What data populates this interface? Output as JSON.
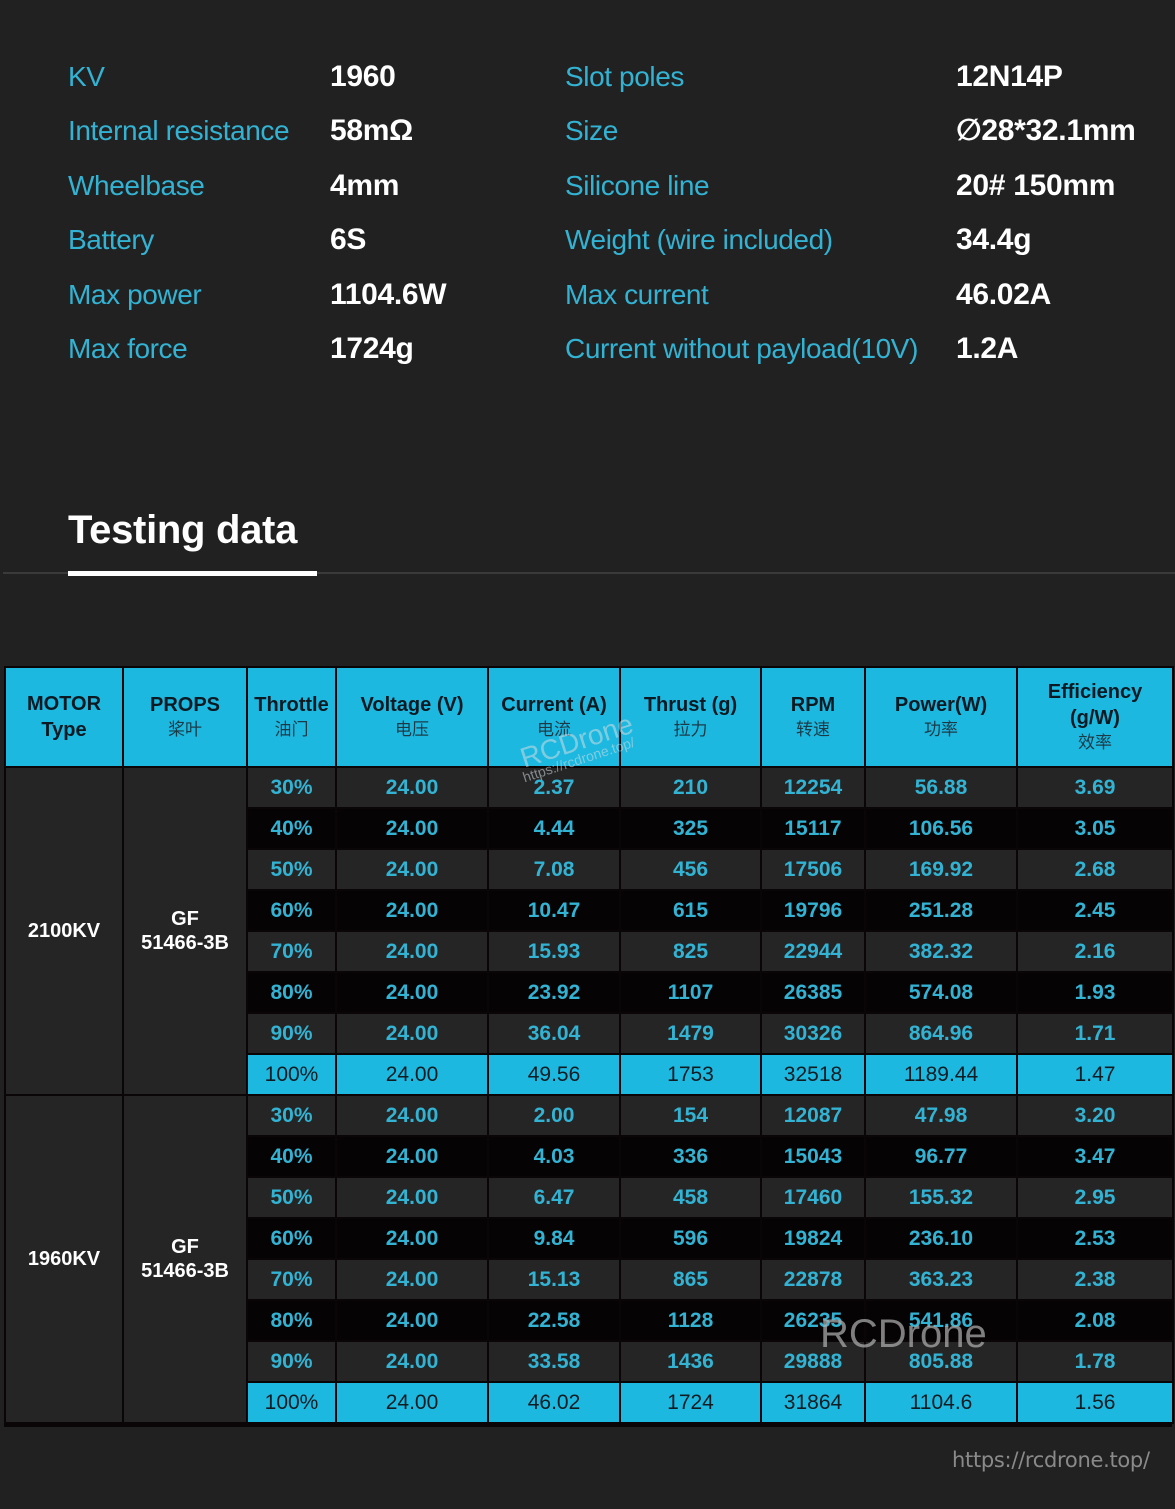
{
  "specs": {
    "left": [
      {
        "label": "KV",
        "value": "1960"
      },
      {
        "label": "Internal resistance",
        "value": "58mΩ"
      },
      {
        "label": "Wheelbase",
        "value": "4mm"
      },
      {
        "label": "Battery",
        "value": "6S"
      },
      {
        "label": "Max power",
        "value": "1104.6W"
      },
      {
        "label": "Max force",
        "value": "1724g"
      }
    ],
    "right": [
      {
        "label": "Slot poles",
        "value": "12N14P"
      },
      {
        "label": "Size",
        "value": "∅28*32.1mm"
      },
      {
        "label": "Silicone line",
        "value": "20# 150mm"
      },
      {
        "label": "Weight (wire included)",
        "value": "34.4g"
      },
      {
        "label": "Max current",
        "value": "46.02A"
      },
      {
        "label": "Current without payload(10V)",
        "value": "1.2A"
      }
    ]
  },
  "section": {
    "title": "Testing data"
  },
  "table": {
    "headers": [
      {
        "en": "MOTOR Type",
        "en1": "MOTOR",
        "en2": "Type",
        "cn": ""
      },
      {
        "en": "PROPS",
        "cn": "桨叶"
      },
      {
        "en": "Throttle",
        "cn": "油门"
      },
      {
        "en": "Voltage (V)",
        "cn": "电压"
      },
      {
        "en": "Current (A)",
        "cn": "电流"
      },
      {
        "en": "Thrust (g)",
        "cn": "拉力"
      },
      {
        "en": "RPM",
        "cn": "转速"
      },
      {
        "en": "Power(W)",
        "cn": "功率"
      },
      {
        "en": "Efficiency (g/W)",
        "en1": "Efficiency",
        "en2": "(g/W)",
        "cn": "效率"
      }
    ],
    "groups": [
      {
        "motor": "2100KV",
        "props_line1": "GF",
        "props_line2": "51466-3B",
        "rows": [
          {
            "throttle": "30%",
            "voltage": "24.00",
            "current": "2.37",
            "thrust": "210",
            "rpm": "12254",
            "power": "56.88",
            "efficiency": "3.69"
          },
          {
            "throttle": "40%",
            "voltage": "24.00",
            "current": "4.44",
            "thrust": "325",
            "rpm": "15117",
            "power": "106.56",
            "efficiency": "3.05"
          },
          {
            "throttle": "50%",
            "voltage": "24.00",
            "current": "7.08",
            "thrust": "456",
            "rpm": "17506",
            "power": "169.92",
            "efficiency": "2.68"
          },
          {
            "throttle": "60%",
            "voltage": "24.00",
            "current": "10.47",
            "thrust": "615",
            "rpm": "19796",
            "power": "251.28",
            "efficiency": "2.45"
          },
          {
            "throttle": "70%",
            "voltage": "24.00",
            "current": "15.93",
            "thrust": "825",
            "rpm": "22944",
            "power": "382.32",
            "efficiency": "2.16"
          },
          {
            "throttle": "80%",
            "voltage": "24.00",
            "current": "23.92",
            "thrust": "1107",
            "rpm": "26385",
            "power": "574.08",
            "efficiency": "1.93"
          },
          {
            "throttle": "90%",
            "voltage": "24.00",
            "current": "36.04",
            "thrust": "1479",
            "rpm": "30326",
            "power": "864.96",
            "efficiency": "1.71"
          },
          {
            "throttle": "100%",
            "voltage": "24.00",
            "current": "49.56",
            "thrust": "1753",
            "rpm": "32518",
            "power": "1189.44",
            "efficiency": "1.47"
          }
        ]
      },
      {
        "motor": "1960KV",
        "props_line1": "GF",
        "props_line2": "51466-3B",
        "rows": [
          {
            "throttle": "30%",
            "voltage": "24.00",
            "current": "2.00",
            "thrust": "154",
            "rpm": "12087",
            "power": "47.98",
            "efficiency": "3.20"
          },
          {
            "throttle": "40%",
            "voltage": "24.00",
            "current": "4.03",
            "thrust": "336",
            "rpm": "15043",
            "power": "96.77",
            "efficiency": "3.47"
          },
          {
            "throttle": "50%",
            "voltage": "24.00",
            "current": "6.47",
            "thrust": "458",
            "rpm": "17460",
            "power": "155.32",
            "efficiency": "2.95"
          },
          {
            "throttle": "60%",
            "voltage": "24.00",
            "current": "9.84",
            "thrust": "596",
            "rpm": "19824",
            "power": "236.10",
            "efficiency": "2.53"
          },
          {
            "throttle": "70%",
            "voltage": "24.00",
            "current": "15.13",
            "thrust": "865",
            "rpm": "22878",
            "power": "363.23",
            "efficiency": "2.38"
          },
          {
            "throttle": "80%",
            "voltage": "24.00",
            "current": "22.58",
            "thrust": "1128",
            "rpm": "26235",
            "power": "541.86",
            "efficiency": "2.08"
          },
          {
            "throttle": "90%",
            "voltage": "24.00",
            "current": "33.58",
            "thrust": "1436",
            "rpm": "29888",
            "power": "805.88",
            "efficiency": "1.78"
          },
          {
            "throttle": "100%",
            "voltage": "24.00",
            "current": "46.02",
            "thrust": "1724",
            "rpm": "31864",
            "power": "1104.6",
            "efficiency": "1.56"
          }
        ]
      }
    ]
  },
  "watermarks": {
    "diagonal_brand": "RCDrone",
    "diagonal_url": "https://rcdrone.top/",
    "center_brand": "RCDrone",
    "footer_url": "https://rcdrone.top/"
  },
  "colors": {
    "background": "#212121",
    "accent_cyan": "#1cb8e0",
    "label_blue": "#33b3d3",
    "value_white": "#ffffff",
    "dark_row": "#060304",
    "light_row": "#252525"
  }
}
